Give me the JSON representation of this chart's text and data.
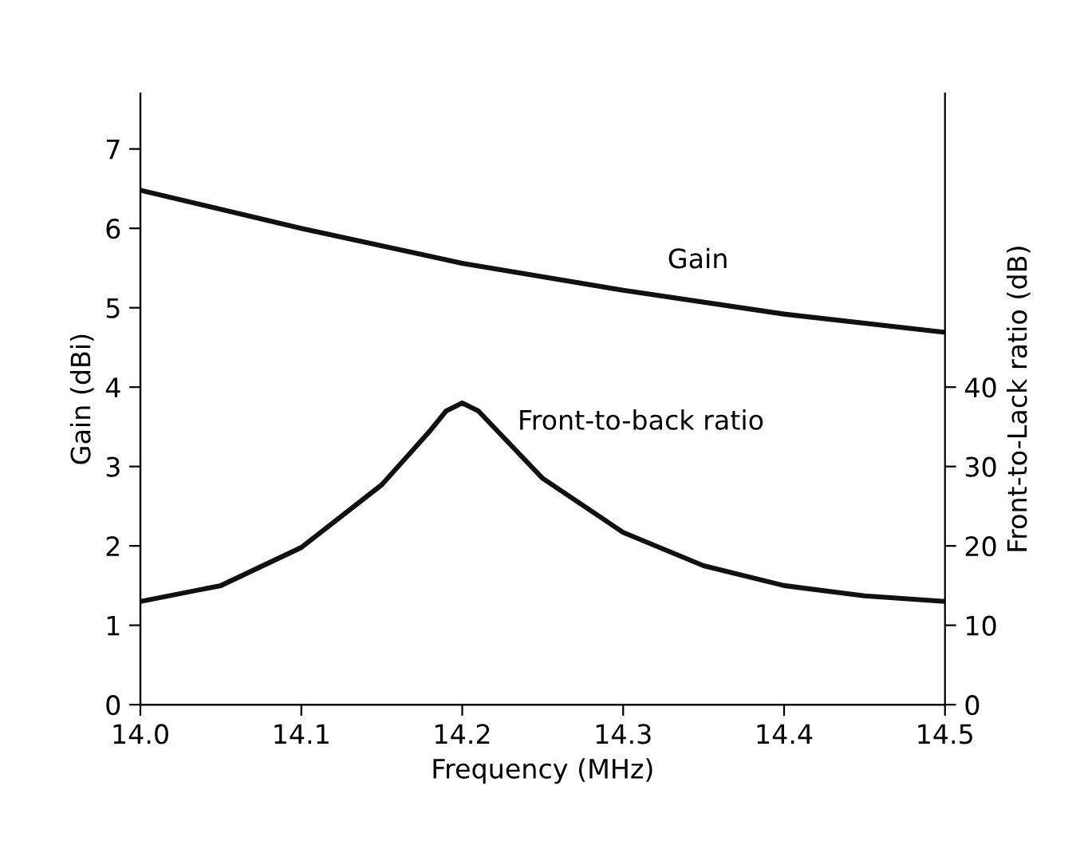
{
  "chart_data": {
    "type": "line",
    "xlabel": "Frequency (MHz)",
    "ylabel": "Gain (dBi)",
    "y2label": "Front-to-Lack ratio (dB)",
    "xlim": [
      14.0,
      14.5
    ],
    "xticks": [
      {
        "value": 14.0,
        "label": "14.0"
      },
      {
        "value": 14.1,
        "label": "14.1"
      },
      {
        "value": 14.2,
        "label": "14.2"
      },
      {
        "value": 14.3,
        "label": "14.3"
      },
      {
        "value": 14.4,
        "label": "14.4"
      },
      {
        "value": 14.5,
        "label": "14.5"
      }
    ],
    "ylim": [
      0,
      7.7
    ],
    "yticks": [
      0,
      1,
      2,
      3,
      4,
      5,
      6,
      7
    ],
    "y2lim": [
      0,
      77
    ],
    "y2ticks": [
      0,
      10,
      20,
      30,
      40
    ],
    "grid": false,
    "legend": false,
    "marker": "none",
    "line_style": "solid",
    "series": [
      {
        "name": "Gain",
        "color": "#111111",
        "x": [
          14.0,
          14.1,
          14.2,
          14.3,
          14.4,
          14.5
        ],
        "values": [
          6.48,
          6.0,
          5.56,
          5.22,
          4.92,
          4.69
        ]
      },
      {
        "name": "Front-to-back ratio",
        "color": "#111111",
        "axis": "y2",
        "x": [
          14.0,
          14.05,
          14.1,
          14.15,
          14.18,
          14.19,
          14.2,
          14.21,
          14.25,
          14.3,
          14.35,
          14.4,
          14.45,
          14.5
        ],
        "values": [
          13,
          15,
          19.8,
          27.7,
          34.5,
          37,
          38,
          37,
          28.5,
          21.7,
          17.5,
          15,
          13.7,
          13
        ]
      }
    ]
  }
}
